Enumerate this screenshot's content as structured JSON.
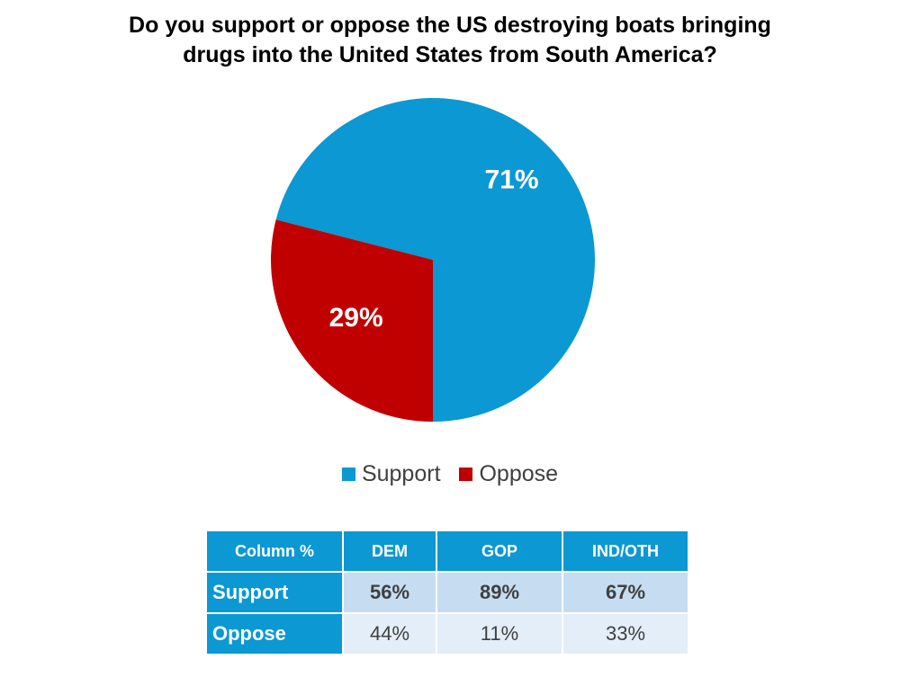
{
  "title": {
    "line1": "Do you support or oppose the US destroying boats bringing",
    "line2": "drugs into the United States from South America?"
  },
  "chart_data": {
    "type": "pie",
    "title": "Do you support or oppose the US destroying boats bringing drugs into the United States from South America?",
    "categories": [
      "Support",
      "Oppose"
    ],
    "values": [
      71,
      29
    ],
    "labels": [
      "71%",
      "29%"
    ],
    "colors": [
      "#0b98d3",
      "#c00000"
    ],
    "legend_position": "bottom"
  },
  "legend": [
    {
      "label": "Support",
      "color": "#0b98d3"
    },
    {
      "label": "Oppose",
      "color": "#c00000"
    }
  ],
  "table": {
    "corner": "Column %",
    "columns": [
      "DEM",
      "GOP",
      "IND/OTH"
    ],
    "rows": [
      {
        "label": "Support",
        "values": [
          "56%",
          "89%",
          "67%"
        ]
      },
      {
        "label": "Oppose",
        "values": [
          "44%",
          "11%",
          "33%"
        ]
      }
    ]
  }
}
